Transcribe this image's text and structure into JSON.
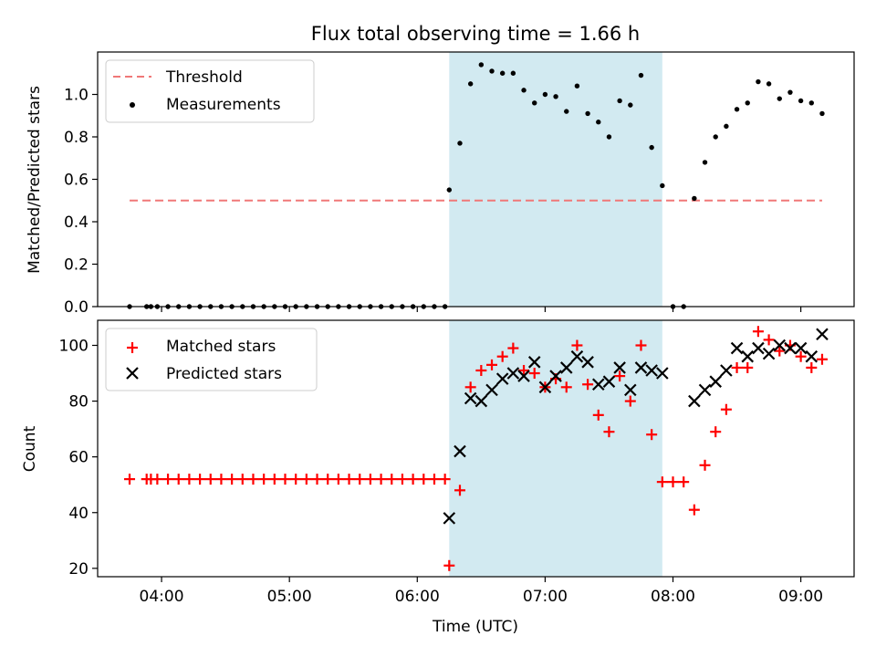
{
  "figure": {
    "title": "Flux total observing time = 1.66 h",
    "xlabel": "Time (UTC)"
  },
  "colors": {
    "threshold": "#f07878",
    "measurement": "#000000",
    "matched": "#ff0000",
    "predicted": "#000000",
    "span_fill": "#add8e6"
  },
  "chart_data": [
    {
      "type": "scatter",
      "panel": "top",
      "ylabel": "Matched/Predicted stars",
      "ylim": [
        0,
        1.2
      ],
      "yticks": [
        0.0,
        0.2,
        0.4,
        0.6,
        0.8,
        1.0
      ],
      "ytick_labels": [
        "0.0",
        "0.2",
        "0.4",
        "0.6",
        "0.8",
        "1.0"
      ],
      "legend": {
        "placement": "top-left"
      },
      "span": {
        "x_start": "06:15",
        "x_end": "07:55"
      },
      "threshold": {
        "name": "Threshold",
        "value": 0.5,
        "x_start": "03:45",
        "x_end": "09:10"
      },
      "series": [
        {
          "name": "Measurements",
          "marker": "dot",
          "x": [
            "03:45",
            "03:53",
            "03:55",
            "03:58",
            "04:03",
            "04:08",
            "04:13",
            "04:18",
            "04:23",
            "04:28",
            "04:33",
            "04:38",
            "04:43",
            "04:48",
            "04:53",
            "04:58",
            "05:03",
            "05:08",
            "05:13",
            "05:18",
            "05:23",
            "05:28",
            "05:33",
            "05:38",
            "05:43",
            "05:48",
            "05:53",
            "05:58",
            "06:03",
            "06:08",
            "06:13",
            "06:15",
            "06:20",
            "06:25",
            "06:30",
            "06:35",
            "06:40",
            "06:45",
            "06:50",
            "06:55",
            "07:00",
            "07:05",
            "07:10",
            "07:15",
            "07:20",
            "07:25",
            "07:30",
            "07:35",
            "07:40",
            "07:45",
            "07:50",
            "07:55",
            "08:00",
            "08:05",
            "08:10",
            "08:15",
            "08:20",
            "08:25",
            "08:30",
            "08:35",
            "08:40",
            "08:45",
            "08:50",
            "08:55",
            "09:00",
            "09:05",
            "09:10"
          ],
          "y": [
            0,
            0,
            0,
            0,
            0,
            0,
            0,
            0,
            0,
            0,
            0,
            0,
            0,
            0,
            0,
            0,
            0,
            0,
            0,
            0,
            0,
            0,
            0,
            0,
            0,
            0,
            0,
            0,
            0,
            0,
            0,
            0.55,
            0.77,
            1.05,
            1.14,
            1.11,
            1.1,
            1.1,
            1.02,
            0.96,
            1.0,
            0.99,
            0.92,
            1.04,
            0.91,
            0.87,
            0.8,
            0.97,
            0.95,
            1.09,
            0.75,
            0.57,
            0,
            0,
            0.51,
            0.68,
            0.8,
            0.85,
            0.93,
            0.96,
            1.06,
            1.05,
            0.98,
            1.01,
            0.97,
            0.96,
            0.91
          ]
        }
      ]
    },
    {
      "type": "scatter",
      "panel": "bottom",
      "ylabel": "Count",
      "ylim": [
        17,
        109
      ],
      "yticks": [
        20,
        40,
        60,
        80,
        100
      ],
      "ytick_labels": [
        "20",
        "40",
        "60",
        "80",
        "100"
      ],
      "legend": {
        "placement": "top-left"
      },
      "span": {
        "x_start": "06:15",
        "x_end": "07:55"
      },
      "xlim": [
        "03:30",
        "09:25"
      ],
      "x_tick_labels": [
        "04:00",
        "05:00",
        "06:00",
        "07:00",
        "08:00",
        "09:00"
      ],
      "series": [
        {
          "name": "Matched stars",
          "marker": "plus",
          "x": [
            "03:45",
            "03:53",
            "03:55",
            "03:58",
            "04:03",
            "04:08",
            "04:13",
            "04:18",
            "04:23",
            "04:28",
            "04:33",
            "04:38",
            "04:43",
            "04:48",
            "04:53",
            "04:58",
            "05:03",
            "05:08",
            "05:13",
            "05:18",
            "05:23",
            "05:28",
            "05:33",
            "05:38",
            "05:43",
            "05:48",
            "05:53",
            "05:58",
            "06:03",
            "06:08",
            "06:13",
            "06:15",
            "06:20",
            "06:25",
            "06:30",
            "06:35",
            "06:40",
            "06:45",
            "06:50",
            "06:55",
            "07:00",
            "07:05",
            "07:10",
            "07:15",
            "07:20",
            "07:25",
            "07:30",
            "07:35",
            "07:40",
            "07:45",
            "07:50",
            "07:55",
            "08:00",
            "08:05",
            "08:10",
            "08:15",
            "08:20",
            "08:25",
            "08:30",
            "08:35",
            "08:40",
            "08:45",
            "08:50",
            "08:55",
            "09:00",
            "09:05",
            "09:10"
          ],
          "y": [
            52,
            52,
            52,
            52,
            52,
            52,
            52,
            52,
            52,
            52,
            52,
            52,
            52,
            52,
            52,
            52,
            52,
            52,
            52,
            52,
            52,
            52,
            52,
            52,
            52,
            52,
            52,
            52,
            52,
            52,
            52,
            21,
            48,
            85,
            91,
            93,
            96,
            99,
            91,
            90,
            85,
            88,
            85,
            100,
            86,
            75,
            69,
            89,
            80,
            100,
            68,
            51,
            51,
            51,
            41,
            57,
            69,
            77,
            92,
            92,
            105,
            102,
            98,
            100,
            96,
            92,
            95
          ]
        },
        {
          "name": "Predicted stars",
          "marker": "x",
          "x": [
            "06:15",
            "06:20",
            "06:25",
            "06:30",
            "06:35",
            "06:40",
            "06:45",
            "06:50",
            "06:55",
            "07:00",
            "07:05",
            "07:10",
            "07:15",
            "07:20",
            "07:25",
            "07:30",
            "07:35",
            "07:40",
            "07:45",
            "07:50",
            "07:55",
            "08:10",
            "08:15",
            "08:20",
            "08:25",
            "08:30",
            "08:35",
            "08:40",
            "08:45",
            "08:50",
            "08:55",
            "09:00",
            "09:05",
            "09:10"
          ],
          "y": [
            38,
            62,
            81,
            80,
            84,
            88,
            90,
            89,
            94,
            85,
            89,
            92,
            96,
            94,
            86,
            87,
            92,
            84,
            92,
            91,
            90,
            80,
            84,
            87,
            91,
            99,
            96,
            99,
            97,
            100,
            99,
            99,
            96,
            104
          ]
        }
      ]
    }
  ]
}
